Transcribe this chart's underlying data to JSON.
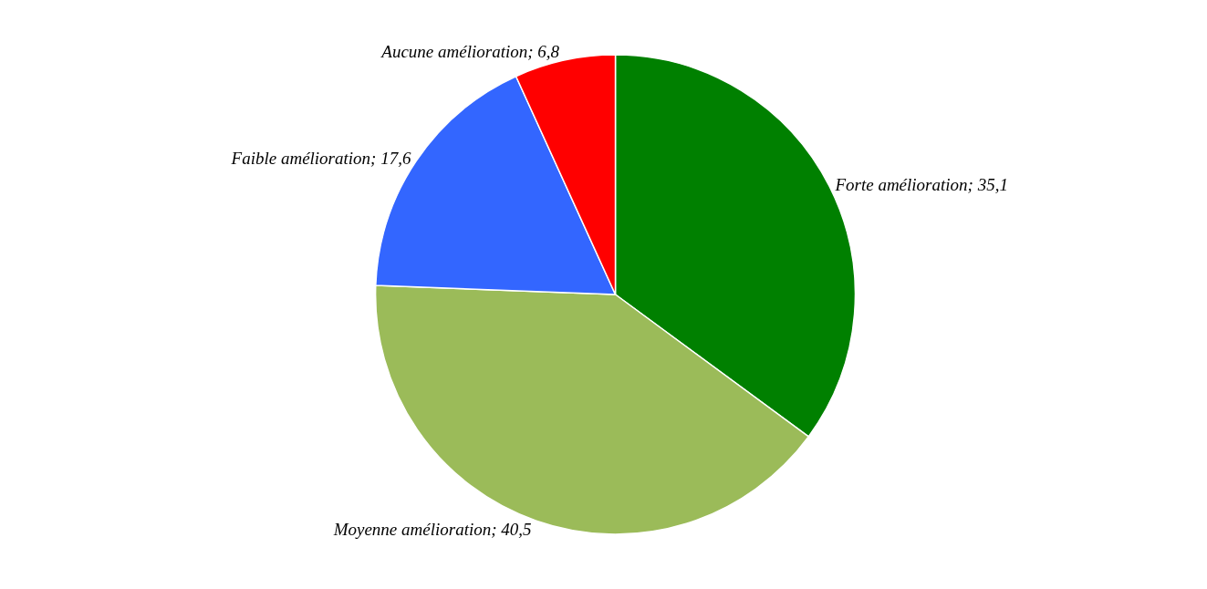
{
  "chart_data": {
    "type": "pie",
    "categories": [
      "Forte amélioration",
      "Moyenne amélioration",
      "Faible amélioration",
      "Aucune amélioration"
    ],
    "values": [
      35.1,
      40.5,
      17.6,
      6.8
    ],
    "value_labels": [
      "35,1",
      "40,5",
      "17,6",
      "6,8"
    ],
    "colors": [
      "#008000",
      "#9bbb59",
      "#3366ff",
      "#ff0000"
    ],
    "legend": false
  }
}
